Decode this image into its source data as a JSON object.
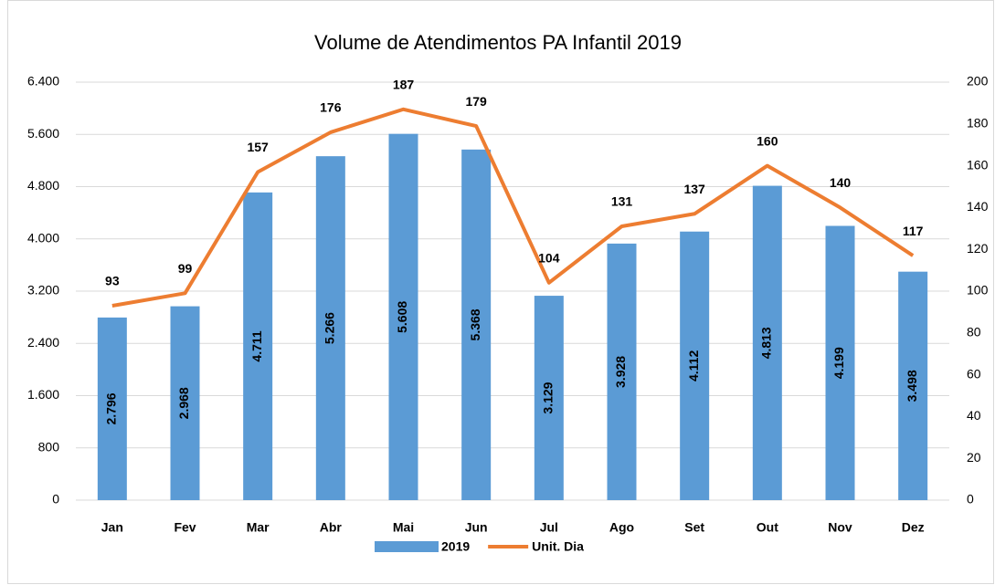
{
  "chart_data": {
    "type": "bar",
    "title": "Volume de Atendimentos PA Infantil 2019",
    "categories": [
      "Jan",
      "Fev",
      "Mar",
      "Abr",
      "Mai",
      "Jun",
      "Jul",
      "Ago",
      "Set",
      "Out",
      "Nov",
      "Dez"
    ],
    "series": [
      {
        "name": "2019",
        "type": "bar",
        "color": "#5b9bd5",
        "values": [
          2796,
          2968,
          4711,
          5266,
          5608,
          5368,
          3129,
          3928,
          4112,
          4813,
          4199,
          3498
        ],
        "value_labels": [
          "2.796",
          "2.968",
          "4.711",
          "5.266",
          "5.608",
          "5.368",
          "3.129",
          "3.928",
          "4.112",
          "4.813",
          "4.199",
          "3.498"
        ]
      },
      {
        "name": "Unit. Dia",
        "type": "line",
        "axis": "y2",
        "color": "#ed7d31",
        "values": [
          93,
          99,
          157,
          176,
          187,
          179,
          104,
          131,
          137,
          160,
          140,
          117
        ]
      }
    ],
    "ylim": [
      0,
      6400
    ],
    "yticks": [
      0,
      800,
      {
        "value": 1600,
        "label": "1.600"
      },
      {
        "value": 2400,
        "label": "2.400"
      },
      {
        "value": 3200,
        "label": "3.200"
      },
      {
        "value": 4000,
        "label": "4.000"
      },
      {
        "value": 4800,
        "label": "4.800"
      },
      {
        "value": 5600,
        "label": "5.600"
      },
      {
        "value": 6400,
        "label": "6.400"
      }
    ],
    "y2lim": [
      0,
      200
    ],
    "y2ticks": [
      0,
      20,
      40,
      60,
      80,
      100,
      120,
      140,
      160,
      180,
      200
    ],
    "grid": true,
    "legend": "bottom"
  }
}
